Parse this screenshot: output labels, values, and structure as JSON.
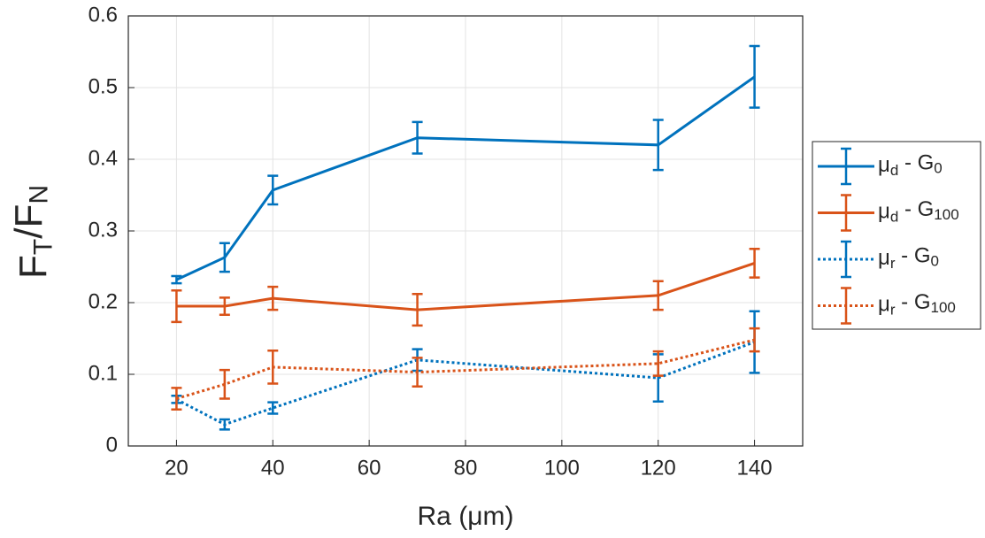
{
  "chart_data": {
    "type": "line",
    "x_label": "Ra (μm)",
    "y_label": "FT/FN",
    "x": [
      20,
      30,
      40,
      70,
      120,
      140
    ],
    "xlim": [
      10,
      150
    ],
    "xticks": [
      20,
      40,
      60,
      80,
      100,
      120,
      140
    ],
    "ylim": [
      0,
      0.6
    ],
    "yticks": [
      0,
      0.1,
      0.2,
      0.3,
      0.4,
      0.5,
      0.6
    ],
    "grid": true,
    "legend": "outside-right",
    "series": [
      {
        "name": "μd - G0",
        "color": "#0072bd",
        "linestyle": "solid",
        "values": [
          0.232,
          0.263,
          0.357,
          0.43,
          0.42,
          0.515
        ],
        "errors": [
          0.005,
          0.02,
          0.02,
          0.022,
          0.035,
          0.043
        ]
      },
      {
        "name": "μd - G100",
        "color": "#d95319",
        "linestyle": "solid",
        "values": [
          0.195,
          0.195,
          0.206,
          0.19,
          0.21,
          0.255
        ],
        "errors": [
          0.022,
          0.012,
          0.016,
          0.022,
          0.02,
          0.02
        ]
      },
      {
        "name": "μr - G0",
        "color": "#0072bd",
        "linestyle": "dotted",
        "values": [
          0.065,
          0.03,
          0.053,
          0.12,
          0.095,
          0.145
        ],
        "errors": [
          0.005,
          0.007,
          0.008,
          0.015,
          0.033,
          0.043
        ]
      },
      {
        "name": "μr - G100",
        "color": "#d95319",
        "linestyle": "dotted",
        "values": [
          0.066,
          0.086,
          0.11,
          0.103,
          0.115,
          0.148
        ],
        "errors": [
          0.015,
          0.02,
          0.023,
          0.02,
          0.017,
          0.016
        ]
      }
    ]
  }
}
